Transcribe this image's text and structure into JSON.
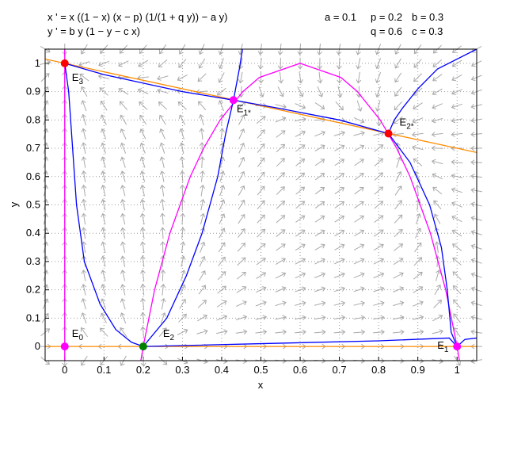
{
  "chart_data": {
    "type": "phase-plane",
    "equations": [
      "x ' = x ((1 − x) (x − p) (1/(1 + q y)) − a y)",
      "y ' = b y (1 − y − c x)"
    ],
    "parameters": [
      {
        "value": 0.1,
        "label": "a = 0.1"
      },
      {
        "value": 0.2,
        "label": "p = 0.2"
      },
      {
        "value": 0.3,
        "label": "b = 0.3"
      },
      {
        "value": 0.6,
        "label": "q = 0.6"
      },
      {
        "value": 0.3,
        "label": "c = 0.3"
      }
    ],
    "x_label": "x",
    "y_label": "y",
    "xlim": [
      -0.05,
      1.05
    ],
    "ylim": [
      -0.05,
      1.05
    ],
    "xticks": [
      0,
      0.1,
      0.2,
      0.3,
      0.4,
      0.5,
      0.6,
      0.7,
      0.8,
      0.9,
      1
    ],
    "yticks": [
      0,
      0.1,
      0.2,
      0.3,
      0.4,
      0.5,
      0.6,
      0.7,
      0.8,
      0.9,
      1
    ],
    "grid": true,
    "series": [
      {
        "color": "#ff00ff",
        "x": [
          0.194,
          0.2,
          0.229,
          0.268,
          0.32,
          0.354,
          0.396,
          0.454,
          0.496,
          0.6,
          0.704,
          0.746,
          0.804,
          0.846,
          0.88,
          0.932,
          0.971,
          1,
          1.006
        ],
        "y": [
          -0.05,
          0,
          0.2,
          0.4,
          0.6,
          0.7,
          0.8,
          0.9,
          0.95,
          1,
          0.95,
          0.9,
          0.8,
          0.7,
          0.6,
          0.4,
          0.2,
          0,
          -0.05
        ]
      },
      {
        "color": "#ff00ff",
        "x": [
          0,
          0
        ],
        "y": [
          -0.05,
          1.05
        ]
      },
      {
        "color": "#ff8c00",
        "x": [
          -0.05,
          1.05
        ],
        "y": [
          0,
          0
        ]
      },
      {
        "color": "#ff8c00",
        "x": [
          -0.05,
          1.05
        ],
        "y": [
          1.015,
          0.685
        ]
      },
      {
        "color": "#0000ff",
        "x": [
          0,
          0.01,
          0.02,
          0.03,
          0.05,
          0.09,
          0.13,
          0.17,
          0.2
        ],
        "y": [
          1,
          0.9,
          0.7,
          0.5,
          0.3,
          0.15,
          0.06,
          0.015,
          0
        ]
      },
      {
        "color": "#0000ff",
        "x": [
          0.2,
          0.26,
          0.31,
          0.35,
          0.39,
          0.41,
          0.43,
          0.445,
          0.453
        ],
        "y": [
          0,
          0.1,
          0.25,
          0.4,
          0.6,
          0.75,
          0.87,
          0.98,
          1.05
        ]
      },
      {
        "color": "#0000ff",
        "x": [
          0.43,
          0.3,
          0.2,
          0.1,
          0
        ],
        "y": [
          0.87,
          0.9,
          0.93,
          0.96,
          1
        ]
      },
      {
        "color": "#0000ff",
        "x": [
          0.43,
          0.55,
          0.7,
          0.825
        ],
        "y": [
          0.87,
          0.84,
          0.8,
          0.752
        ]
      },
      {
        "color": "#0000ff",
        "x": [
          1.05,
          0.95,
          0.9,
          0.86,
          0.84,
          0.825
        ],
        "y": [
          1.05,
          0.98,
          0.91,
          0.84,
          0.8,
          0.752
        ]
      },
      {
        "color": "#0000ff",
        "x": [
          0.825,
          0.88,
          0.93,
          0.96,
          0.975,
          0.985,
          1
        ],
        "y": [
          0.752,
          0.65,
          0.5,
          0.35,
          0.2,
          0.05,
          0
        ]
      },
      {
        "color": "#0000ff",
        "x": [
          0.2,
          0.5,
          0.8,
          0.98,
          1
        ],
        "y": [
          0,
          0.01,
          0.02,
          0.03,
          0
        ]
      },
      {
        "color": "#0000ff",
        "x": [
          1.05,
          1.02,
          1
        ],
        "y": [
          0.03,
          0.025,
          0
        ]
      }
    ],
    "points": [
      {
        "label": "E",
        "sub": "0",
        "x": 0,
        "y": 0,
        "color": "#ff00ff"
      },
      {
        "label": "E",
        "sub": "1",
        "x": 1,
        "y": 0,
        "color": "#ff00ff"
      },
      {
        "label": "E",
        "sub": "2",
        "x": 0.2,
        "y": 0,
        "color": "#008000"
      },
      {
        "label": "E",
        "sub": "3",
        "x": 0,
        "y": 1,
        "color": "#ff0000"
      },
      {
        "label": "E",
        "sub": "1*",
        "x": 0.43,
        "y": 0.87,
        "color": "#ff00ff"
      },
      {
        "label": "E",
        "sub": "2*",
        "x": 0.825,
        "y": 0.752,
        "color": "#ff0000"
      }
    ]
  }
}
